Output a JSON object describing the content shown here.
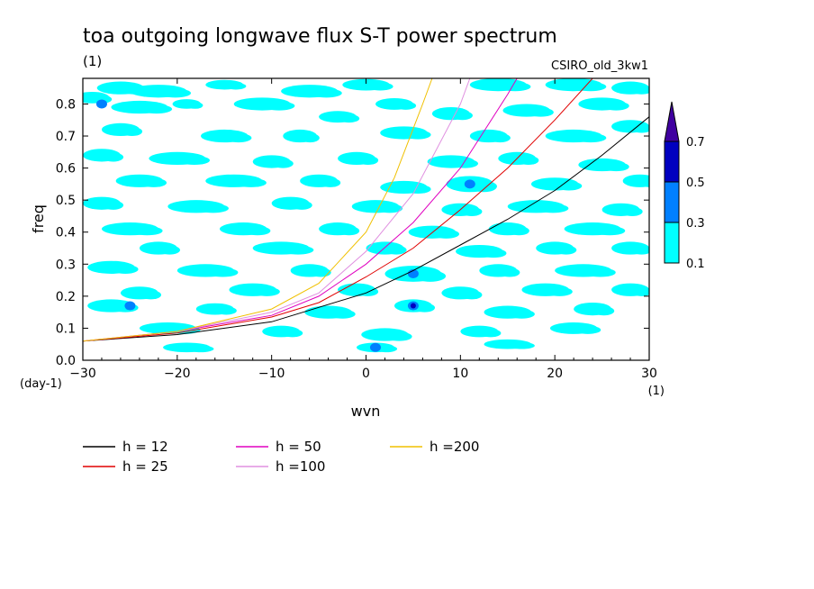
{
  "chart_data": {
    "type": "heatmap",
    "title": "toa outgoing longwave flux S-T power spectrum",
    "subtitle_left": "(1)",
    "subtitle_right": "CSIRO_old_3kw1",
    "xlabel": "wvn",
    "ylabel": "freq",
    "x_unit": "(1)",
    "y_unit": "(day-1)",
    "xlim": [
      -30,
      30
    ],
    "ylim": [
      0,
      0.88
    ],
    "x_ticks": [
      -30,
      -20,
      -10,
      0,
      10,
      20,
      30
    ],
    "y_ticks": [
      0.0,
      0.1,
      0.2,
      0.3,
      0.4,
      0.5,
      0.6,
      0.7,
      0.8
    ],
    "y_tick_labels": [
      "0.0",
      "0.1",
      "0.2",
      "0.3",
      "0.4",
      "0.5",
      "0.6",
      "0.7",
      "0.8"
    ],
    "colorbar": {
      "levels": [
        "0.1",
        "0.3",
        "0.5",
        "0.7"
      ],
      "colors": [
        "#00ffff",
        "#0080ff",
        "#0000c0",
        "#4000a0"
      ]
    },
    "background_field_color": "#00ffff",
    "dispersion_curves": [
      {
        "name": "h = 12",
        "color": "#000000",
        "x": [
          -30,
          -20,
          -10,
          0,
          5,
          10,
          15,
          20,
          25,
          30
        ],
        "y": [
          0.06,
          0.08,
          0.12,
          0.21,
          0.28,
          0.36,
          0.44,
          0.53,
          0.64,
          0.76
        ]
      },
      {
        "name": "h = 25",
        "color": "#e00000",
        "x": [
          -30,
          -20,
          -10,
          -5,
          0,
          5,
          10,
          15,
          20,
          24
        ],
        "y": [
          0.06,
          0.085,
          0.135,
          0.18,
          0.26,
          0.35,
          0.47,
          0.6,
          0.75,
          0.88
        ]
      },
      {
        "name": "h = 50",
        "color": "#e000c0",
        "x": [
          -30,
          -20,
          -10,
          -5,
          0,
          5,
          10,
          15,
          16
        ],
        "y": [
          0.06,
          0.09,
          0.14,
          0.2,
          0.3,
          0.43,
          0.6,
          0.83,
          0.88
        ]
      },
      {
        "name": "h =100",
        "color": "#e090e0",
        "x": [
          -30,
          -20,
          -10,
          -5,
          0,
          5,
          10,
          11
        ],
        "y": [
          0.06,
          0.09,
          0.15,
          0.21,
          0.34,
          0.52,
          0.8,
          0.88
        ]
      },
      {
        "name": "h =200",
        "color": "#f0c000",
        "x": [
          -30,
          -20,
          -10,
          -5,
          0,
          3,
          6,
          7
        ],
        "y": [
          0.06,
          0.09,
          0.16,
          0.24,
          0.4,
          0.57,
          0.8,
          0.88
        ]
      }
    ],
    "blobs": [
      {
        "x": -29,
        "y": 0.82,
        "rx": 1.8,
        "ry": 0.018
      },
      {
        "x": -26,
        "y": 0.85,
        "rx": 2.5,
        "ry": 0.02
      },
      {
        "x": -22,
        "y": 0.84,
        "rx": 3,
        "ry": 0.02
      },
      {
        "x": -15,
        "y": 0.86,
        "rx": 2,
        "ry": 0.015
      },
      {
        "x": -6,
        "y": 0.84,
        "rx": 3,
        "ry": 0.02
      },
      {
        "x": 0,
        "y": 0.86,
        "rx": 2.5,
        "ry": 0.018
      },
      {
        "x": 14,
        "y": 0.86,
        "rx": 3,
        "ry": 0.02
      },
      {
        "x": 22,
        "y": 0.86,
        "rx": 3,
        "ry": 0.02
      },
      {
        "x": 28,
        "y": 0.85,
        "rx": 2,
        "ry": 0.02
      },
      {
        "x": -24,
        "y": 0.79,
        "rx": 3,
        "ry": 0.02
      },
      {
        "x": -19,
        "y": 0.8,
        "rx": 1.5,
        "ry": 0.015
      },
      {
        "x": -11,
        "y": 0.8,
        "rx": 3,
        "ry": 0.02
      },
      {
        "x": -3,
        "y": 0.76,
        "rx": 2,
        "ry": 0.018
      },
      {
        "x": 3,
        "y": 0.8,
        "rx": 2,
        "ry": 0.018
      },
      {
        "x": 9,
        "y": 0.77,
        "rx": 2,
        "ry": 0.02
      },
      {
        "x": 17,
        "y": 0.78,
        "rx": 2.5,
        "ry": 0.02
      },
      {
        "x": 25,
        "y": 0.8,
        "rx": 2.5,
        "ry": 0.02
      },
      {
        "x": -26,
        "y": 0.72,
        "rx": 2,
        "ry": 0.02
      },
      {
        "x": -15,
        "y": 0.7,
        "rx": 2.5,
        "ry": 0.02
      },
      {
        "x": -7,
        "y": 0.7,
        "rx": 1.8,
        "ry": 0.02
      },
      {
        "x": 4,
        "y": 0.71,
        "rx": 2.5,
        "ry": 0.02
      },
      {
        "x": 13,
        "y": 0.7,
        "rx": 2,
        "ry": 0.02
      },
      {
        "x": 22,
        "y": 0.7,
        "rx": 3,
        "ry": 0.02
      },
      {
        "x": 28,
        "y": 0.73,
        "rx": 2,
        "ry": 0.02
      },
      {
        "x": -28,
        "y": 0.64,
        "rx": 2,
        "ry": 0.02
      },
      {
        "x": -20,
        "y": 0.63,
        "rx": 3,
        "ry": 0.02
      },
      {
        "x": -10,
        "y": 0.62,
        "rx": 2,
        "ry": 0.02
      },
      {
        "x": -1,
        "y": 0.63,
        "rx": 2,
        "ry": 0.02
      },
      {
        "x": 9,
        "y": 0.62,
        "rx": 2.5,
        "ry": 0.02
      },
      {
        "x": 16,
        "y": 0.63,
        "rx": 2,
        "ry": 0.02
      },
      {
        "x": 25,
        "y": 0.61,
        "rx": 2.5,
        "ry": 0.02
      },
      {
        "x": -24,
        "y": 0.56,
        "rx": 2.5,
        "ry": 0.02
      },
      {
        "x": -14,
        "y": 0.56,
        "rx": 3,
        "ry": 0.02
      },
      {
        "x": -5,
        "y": 0.56,
        "rx": 2,
        "ry": 0.02
      },
      {
        "x": 4,
        "y": 0.54,
        "rx": 2.5,
        "ry": 0.02
      },
      {
        "x": 11,
        "y": 0.55,
        "rx": 2.5,
        "ry": 0.025
      },
      {
        "x": 20,
        "y": 0.55,
        "rx": 2.5,
        "ry": 0.02
      },
      {
        "x": 29,
        "y": 0.56,
        "rx": 1.8,
        "ry": 0.02
      },
      {
        "x": -28,
        "y": 0.49,
        "rx": 2,
        "ry": 0.02
      },
      {
        "x": -18,
        "y": 0.48,
        "rx": 3,
        "ry": 0.02
      },
      {
        "x": -8,
        "y": 0.49,
        "rx": 2,
        "ry": 0.02
      },
      {
        "x": 1,
        "y": 0.48,
        "rx": 2.5,
        "ry": 0.02
      },
      {
        "x": 10,
        "y": 0.47,
        "rx": 2,
        "ry": 0.02
      },
      {
        "x": 18,
        "y": 0.48,
        "rx": 3,
        "ry": 0.02
      },
      {
        "x": 27,
        "y": 0.47,
        "rx": 2,
        "ry": 0.02
      },
      {
        "x": -25,
        "y": 0.41,
        "rx": 3,
        "ry": 0.02
      },
      {
        "x": -13,
        "y": 0.41,
        "rx": 2.5,
        "ry": 0.02
      },
      {
        "x": -3,
        "y": 0.41,
        "rx": 2,
        "ry": 0.02
      },
      {
        "x": 7,
        "y": 0.4,
        "rx": 2.5,
        "ry": 0.02
      },
      {
        "x": 15,
        "y": 0.41,
        "rx": 2,
        "ry": 0.02
      },
      {
        "x": 24,
        "y": 0.41,
        "rx": 3,
        "ry": 0.02
      },
      {
        "x": -22,
        "y": 0.35,
        "rx": 2,
        "ry": 0.02
      },
      {
        "x": -9,
        "y": 0.35,
        "rx": 3,
        "ry": 0.02
      },
      {
        "x": 2,
        "y": 0.35,
        "rx": 2,
        "ry": 0.02
      },
      {
        "x": 12,
        "y": 0.34,
        "rx": 2.5,
        "ry": 0.02
      },
      {
        "x": 20,
        "y": 0.35,
        "rx": 2,
        "ry": 0.02
      },
      {
        "x": 28,
        "y": 0.35,
        "rx": 2,
        "ry": 0.02
      },
      {
        "x": -27,
        "y": 0.29,
        "rx": 2.5,
        "ry": 0.02
      },
      {
        "x": -17,
        "y": 0.28,
        "rx": 3,
        "ry": 0.02
      },
      {
        "x": -6,
        "y": 0.28,
        "rx": 2,
        "ry": 0.02
      },
      {
        "x": 5,
        "y": 0.27,
        "rx": 3,
        "ry": 0.025
      },
      {
        "x": 14,
        "y": 0.28,
        "rx": 2,
        "ry": 0.02
      },
      {
        "x": 23,
        "y": 0.28,
        "rx": 3,
        "ry": 0.02
      },
      {
        "x": -24,
        "y": 0.21,
        "rx": 2,
        "ry": 0.02
      },
      {
        "x": -12,
        "y": 0.22,
        "rx": 2.5,
        "ry": 0.02
      },
      {
        "x": -1,
        "y": 0.22,
        "rx": 2,
        "ry": 0.02
      },
      {
        "x": 10,
        "y": 0.21,
        "rx": 2,
        "ry": 0.02
      },
      {
        "x": 19,
        "y": 0.22,
        "rx": 2.5,
        "ry": 0.02
      },
      {
        "x": 28,
        "y": 0.22,
        "rx": 2,
        "ry": 0.02
      },
      {
        "x": -27,
        "y": 0.17,
        "rx": 2.5,
        "ry": 0.02
      },
      {
        "x": -16,
        "y": 0.16,
        "rx": 2,
        "ry": 0.018
      },
      {
        "x": -4,
        "y": 0.15,
        "rx": 2.5,
        "ry": 0.02
      },
      {
        "x": 5,
        "y": 0.17,
        "rx": 2,
        "ry": 0.02
      },
      {
        "x": 15,
        "y": 0.15,
        "rx": 2.5,
        "ry": 0.02
      },
      {
        "x": 24,
        "y": 0.16,
        "rx": 2,
        "ry": 0.02
      },
      {
        "x": -21,
        "y": 0.1,
        "rx": 3,
        "ry": 0.018
      },
      {
        "x": -9,
        "y": 0.09,
        "rx": 2,
        "ry": 0.018
      },
      {
        "x": 2,
        "y": 0.08,
        "rx": 2.5,
        "ry": 0.02
      },
      {
        "x": 12,
        "y": 0.09,
        "rx": 2,
        "ry": 0.018
      },
      {
        "x": 22,
        "y": 0.1,
        "rx": 2.5,
        "ry": 0.018
      },
      {
        "x": -19,
        "y": 0.04,
        "rx": 2.5,
        "ry": 0.015
      },
      {
        "x": 1,
        "y": 0.04,
        "rx": 2,
        "ry": 0.015
      },
      {
        "x": 15,
        "y": 0.05,
        "rx": 2.5,
        "ry": 0.015
      }
    ],
    "dark_spots": [
      {
        "x": 5,
        "y": 0.27,
        "level": "0.3"
      },
      {
        "x": 5,
        "y": 0.17,
        "level": "0.5"
      },
      {
        "x": 1,
        "y": 0.04,
        "level": "0.3"
      },
      {
        "x": 11,
        "y": 0.55,
        "level": "0.3"
      },
      {
        "x": -28,
        "y": 0.8,
        "level": "0.3"
      },
      {
        "x": -25,
        "y": 0.17,
        "level": "0.3"
      }
    ]
  }
}
